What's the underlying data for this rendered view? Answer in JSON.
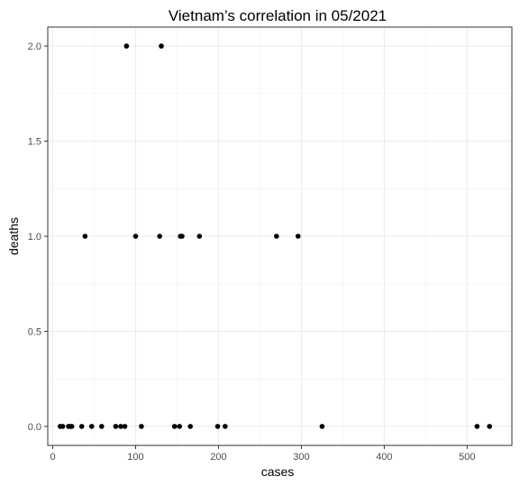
{
  "chart_data": {
    "type": "scatter",
    "title": "Vietnam’s correlation in 05/2021",
    "xlabel": "cases",
    "ylabel": "deaths",
    "xlim": [
      -6,
      554
    ],
    "ylim": [
      -0.1,
      2.1
    ],
    "x_ticks": [
      0,
      100,
      200,
      300,
      400,
      500
    ],
    "x_tick_labels": [
      "0",
      "100",
      "200",
      "300",
      "400",
      "500"
    ],
    "x_minor_ticks": [
      50,
      150,
      250,
      350,
      450,
      550
    ],
    "y_ticks": [
      0,
      0.5,
      1,
      1.5,
      2
    ],
    "y_tick_labels": [
      "0.0",
      "0.5",
      "1.0",
      "1.5",
      "2.0"
    ],
    "y_minor_ticks": [
      0.25,
      0.75,
      1.25,
      1.75
    ],
    "grid": true,
    "point_color": "#000000",
    "points": [
      {
        "x": 89,
        "y": 2
      },
      {
        "x": 131,
        "y": 2
      },
      {
        "x": 39,
        "y": 1
      },
      {
        "x": 100,
        "y": 1
      },
      {
        "x": 129,
        "y": 1
      },
      {
        "x": 154,
        "y": 1
      },
      {
        "x": 156,
        "y": 1
      },
      {
        "x": 177,
        "y": 1
      },
      {
        "x": 270,
        "y": 1
      },
      {
        "x": 296,
        "y": 1
      },
      {
        "x": 9,
        "y": 0
      },
      {
        "x": 12,
        "y": 0
      },
      {
        "x": 19,
        "y": 0
      },
      {
        "x": 21,
        "y": 0
      },
      {
        "x": 23,
        "y": 0
      },
      {
        "x": 35,
        "y": 0
      },
      {
        "x": 47,
        "y": 0
      },
      {
        "x": 59,
        "y": 0
      },
      {
        "x": 76,
        "y": 0
      },
      {
        "x": 82,
        "y": 0
      },
      {
        "x": 87,
        "y": 0
      },
      {
        "x": 107,
        "y": 0
      },
      {
        "x": 147,
        "y": 0
      },
      {
        "x": 153,
        "y": 0
      },
      {
        "x": 166,
        "y": 0
      },
      {
        "x": 199,
        "y": 0
      },
      {
        "x": 208,
        "y": 0
      },
      {
        "x": 325,
        "y": 0
      },
      {
        "x": 512,
        "y": 0
      },
      {
        "x": 527,
        "y": 0
      }
    ]
  }
}
